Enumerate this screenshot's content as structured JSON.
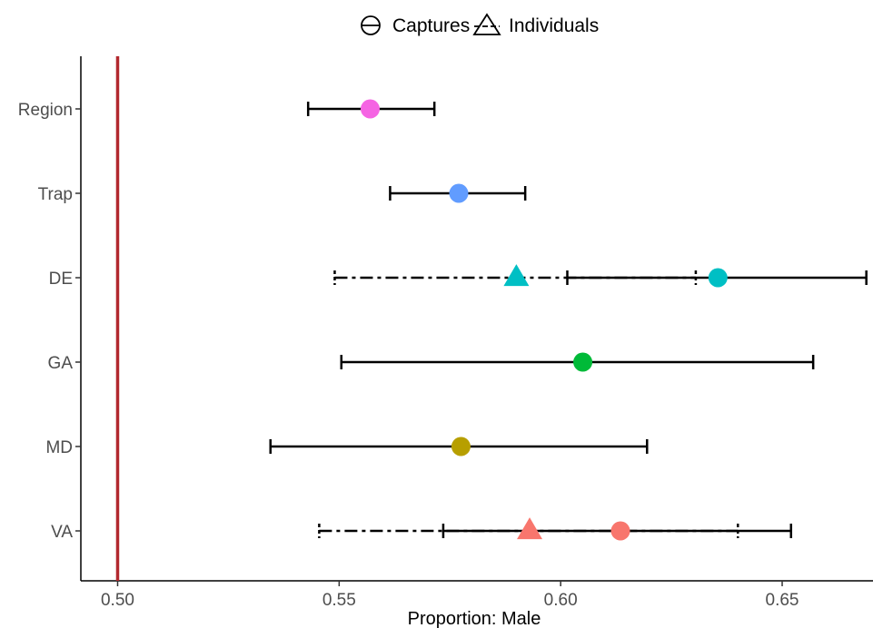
{
  "chart_data": {
    "type": "scatter",
    "title": "",
    "xlabel": "Proportion: Male",
    "ylabel": "",
    "xlim": [
      0.4917,
      0.6705
    ],
    "x_ticks": [
      "0.50",
      "0.55",
      "0.60",
      "0.65"
    ],
    "x_tick_values": [
      0.5,
      0.55,
      0.6,
      0.65
    ],
    "categories": [
      "Region",
      "Trap",
      "DE",
      "GA",
      "MD",
      "VA"
    ],
    "reference_line": {
      "x": 0.5,
      "color": "#b2282e"
    },
    "legend": {
      "position": "top",
      "items": [
        {
          "label": "Captures",
          "shape": "circle"
        },
        {
          "label": "Individuals",
          "shape": "triangle"
        }
      ]
    },
    "series": [
      {
        "name": "Captures",
        "shape": "circle",
        "line": "solid",
        "points": [
          {
            "category": "Region",
            "estimate": 0.557,
            "lower": 0.543,
            "upper": 0.5715,
            "color": "#f564e3"
          },
          {
            "category": "Trap",
            "estimate": 0.577,
            "lower": 0.5615,
            "upper": 0.592,
            "color": "#619cff"
          },
          {
            "category": "DE",
            "estimate": 0.6355,
            "lower": 0.6015,
            "upper": 0.669,
            "color": "#00bfc4"
          },
          {
            "category": "GA",
            "estimate": 0.605,
            "lower": 0.5505,
            "upper": 0.657,
            "color": "#00ba38"
          },
          {
            "category": "MD",
            "estimate": 0.5775,
            "lower": 0.5345,
            "upper": 0.6195,
            "color": "#b79f00"
          },
          {
            "category": "VA",
            "estimate": 0.6135,
            "lower": 0.5735,
            "upper": 0.652,
            "color": "#f8766d"
          }
        ]
      },
      {
        "name": "Individuals",
        "shape": "triangle",
        "line": "dashed",
        "points": [
          {
            "category": "DE",
            "estimate": 0.59,
            "lower": 0.549,
            "upper": 0.6305,
            "color": "#00bfc4"
          },
          {
            "category": "VA",
            "estimate": 0.593,
            "lower": 0.5455,
            "upper": 0.64,
            "color": "#f8766d"
          }
        ]
      }
    ]
  }
}
